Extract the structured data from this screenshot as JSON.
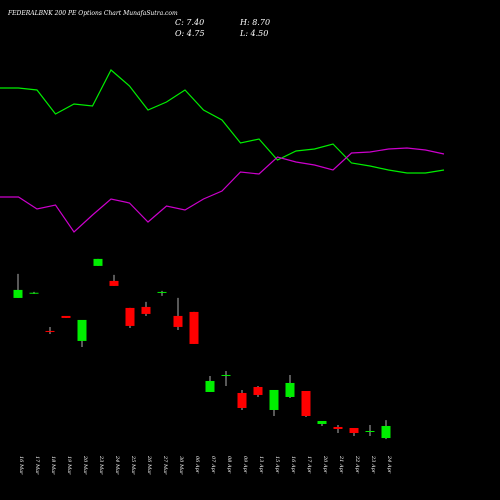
{
  "chart_data": [
    {
      "type": "candlestick",
      "title": "FEDERALBNK 200 PE Options Chart MunafaSutra.com",
      "info": [
        "C: 7.40",
        "H: 8.70",
        "O: 4.75",
        "L: 4.50"
      ],
      "categories": [
        "16 Mar",
        "17 Mar",
        "18 Mar",
        "19 Mar",
        "20 Mar",
        "23 Mar",
        "24 Mar",
        "25 Mar",
        "26 Mar",
        "27 Mar",
        "30 Mar",
        "06 Apr",
        "07 Apr",
        "08 Apr",
        "09 Apr",
        "13 Apr",
        "15 Apr",
        "16 Apr",
        "17 Apr",
        "20 Apr",
        "21 Apr",
        "22 Apr",
        "23 Apr",
        "24 Apr"
      ],
      "open": [
        35.56,
        36.66,
        28.3,
        31.6,
        26.1,
        42.6,
        39.3,
        33.36,
        33.58,
        36.66,
        31.6,
        32.48,
        14.88,
        18.4,
        14.66,
        15.98,
        10.92,
        13.78,
        15.1,
        7.84,
        7.18,
        6.96,
        6.08,
        4.75
      ],
      "high": [
        40.84,
        36.88,
        29.18,
        31.6,
        30.72,
        44.14,
        40.62,
        33.36,
        34.68,
        37.1,
        35.56,
        32.48,
        18.4,
        19.5,
        15.32,
        16.2,
        15.32,
        18.62,
        15.1,
        8.5,
        7.62,
        6.96,
        7.62,
        8.7
      ],
      "low": [
        35.56,
        36.44,
        27.64,
        31.16,
        24.78,
        42.6,
        38.2,
        28.96,
        31.6,
        36.0,
        28.52,
        25.44,
        14.88,
        16.2,
        10.92,
        13.78,
        9.6,
        13.56,
        9.38,
        7.4,
        5.86,
        5.2,
        5.2,
        4.5
      ],
      "close": [
        37.32,
        36.7,
        28.08,
        31.16,
        30.72,
        44.14,
        38.2,
        29.4,
        32.04,
        36.88,
        29.18,
        25.44,
        17.3,
        18.62,
        11.36,
        14.22,
        15.32,
        16.86,
        9.6,
        8.5,
        6.74,
        5.86,
        6.3,
        7.4
      ],
      "up_color": "#00ee00",
      "down_color": "#ff0000",
      "wick_color": "#dddddd",
      "ylim": [
        3,
        45
      ]
    },
    {
      "type": "line",
      "series": [
        {
          "color": "#00ee00",
          "values": [
            81,
            81,
            80,
            68,
            73,
            72,
            90,
            82,
            70,
            74,
            80,
            70,
            65,
            53.5,
            55.5,
            45,
            49.5,
            50.5,
            53,
            43.5,
            42,
            40,
            38.5,
            38.5,
            40
          ]
        },
        {
          "color": "#cc00cc",
          "values": [
            26.5,
            26.5,
            20.5,
            22.5,
            9,
            17.5,
            25.5,
            23.5,
            14,
            22,
            20,
            25.5,
            29.5,
            39,
            38,
            46.5,
            44,
            42.5,
            40,
            48.5,
            49,
            50.5,
            51,
            50,
            48
          ]
        }
      ],
      "ylim": [
        0,
        100
      ]
    }
  ]
}
